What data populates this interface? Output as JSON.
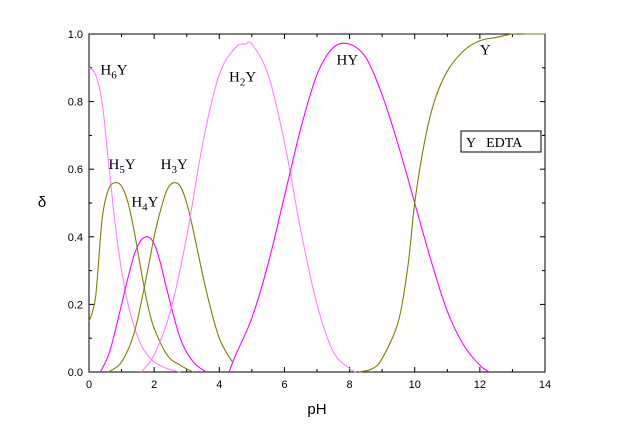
{
  "chart_data": {
    "type": "line",
    "xlabel": "pH",
    "ylabel": "δ",
    "xlim": [
      0,
      14
    ],
    "ylim": [
      0,
      1.0
    ],
    "x_ticks": [
      "0",
      "2",
      "4",
      "6",
      "8",
      "10",
      "12",
      "14"
    ],
    "y_ticks": [
      "0.0",
      "0.2",
      "0.4",
      "0.6",
      "0.8",
      "1.0"
    ],
    "grid": false,
    "legend_box": "Y EDTA",
    "colors": {
      "pink": "#ff80ff",
      "olive": "#7f7f00",
      "magenta": "#ff00ff"
    },
    "series": [
      {
        "name": "H6Y",
        "color": "#ff80ff",
        "x": [
          0,
          0.2,
          0.4,
          0.6,
          0.8,
          1.0,
          1.2,
          1.4,
          1.6,
          1.8,
          2.0,
          2.4,
          2.8
        ],
        "y": [
          0.9,
          0.88,
          0.8,
          0.62,
          0.44,
          0.3,
          0.2,
          0.13,
          0.08,
          0.05,
          0.03,
          0.01,
          0.0
        ]
      },
      {
        "name": "H5Y",
        "color": "#7f7f00",
        "x": [
          0,
          0.2,
          0.4,
          0.6,
          0.8,
          1.0,
          1.2,
          1.4,
          1.6,
          1.8,
          2.0,
          2.4,
          2.8,
          3.2
        ],
        "y": [
          0.15,
          0.22,
          0.45,
          0.54,
          0.56,
          0.55,
          0.5,
          0.41,
          0.3,
          0.2,
          0.13,
          0.05,
          0.02,
          0.0
        ]
      },
      {
        "name": "H4Y",
        "color": "#ff00ff",
        "x": [
          0.35,
          0.6,
          0.8,
          1.0,
          1.2,
          1.4,
          1.6,
          1.8,
          2.0,
          2.2,
          2.4,
          2.8,
          3.2,
          3.6
        ],
        "y": [
          0.0,
          0.05,
          0.12,
          0.2,
          0.28,
          0.35,
          0.39,
          0.4,
          0.38,
          0.32,
          0.24,
          0.1,
          0.03,
          0.0
        ]
      },
      {
        "name": "H3Y",
        "color": "#7f7f00",
        "x": [
          0.6,
          1.0,
          1.4,
          1.8,
          2.0,
          2.2,
          2.4,
          2.6,
          2.8,
          3.0,
          3.2,
          3.6,
          4.0,
          4.4
        ],
        "y": [
          0.0,
          0.03,
          0.12,
          0.3,
          0.4,
          0.48,
          0.54,
          0.56,
          0.55,
          0.5,
          0.42,
          0.24,
          0.1,
          0.03
        ]
      },
      {
        "name": "H2Y",
        "color": "#ff80ff",
        "x": [
          1.6,
          2.0,
          2.5,
          3.0,
          3.5,
          4.0,
          4.5,
          4.8,
          5.0,
          5.5,
          6.0,
          6.5,
          7.0,
          7.5,
          8.0,
          8.2
        ],
        "y": [
          0.0,
          0.05,
          0.18,
          0.4,
          0.68,
          0.88,
          0.96,
          0.97,
          0.97,
          0.88,
          0.68,
          0.42,
          0.2,
          0.06,
          0.01,
          0.0
        ]
      },
      {
        "name": "HY",
        "color": "#ff00ff",
        "x": [
          4.3,
          4.5,
          5.0,
          5.5,
          6.0,
          6.5,
          7.0,
          7.5,
          8.0,
          8.5,
          9.0,
          9.5,
          10.0,
          10.5,
          11.0,
          11.5,
          12.0,
          12.3
        ],
        "y": [
          0.0,
          0.05,
          0.16,
          0.32,
          0.52,
          0.72,
          0.88,
          0.96,
          0.97,
          0.93,
          0.82,
          0.67,
          0.5,
          0.33,
          0.18,
          0.08,
          0.02,
          0.0
        ]
      },
      {
        "name": "Y",
        "color": "#7f7f00",
        "x": [
          8.3,
          8.7,
          9.0,
          9.5,
          9.8,
          10.0,
          10.3,
          10.6,
          11.0,
          11.5,
          12.0,
          12.5,
          13.0,
          13.5,
          14.0
        ],
        "y": [
          0.0,
          0.01,
          0.04,
          0.15,
          0.32,
          0.5,
          0.68,
          0.8,
          0.89,
          0.95,
          0.98,
          0.99,
          1.0,
          1.0,
          1.0
        ]
      }
    ],
    "curve_labels": [
      {
        "base": "H",
        "sub": "6",
        "suffix": "Y",
        "x": 0.35,
        "y": 0.88
      },
      {
        "base": "H",
        "sub": "5",
        "suffix": "Y",
        "x": 0.6,
        "y": 0.6
      },
      {
        "base": "H",
        "sub": "4",
        "suffix": "Y",
        "x": 1.3,
        "y": 0.49
      },
      {
        "base": "H",
        "sub": "3",
        "suffix": "Y",
        "x": 2.2,
        "y": 0.6
      },
      {
        "base": "H",
        "sub": "2",
        "suffix": "Y",
        "x": 4.3,
        "y": 0.86
      },
      {
        "base": "HY",
        "sub": "",
        "suffix": "",
        "x": 7.6,
        "y": 0.91
      },
      {
        "base": "Y",
        "sub": "",
        "suffix": "",
        "x": 12.0,
        "y": 0.94
      }
    ]
  }
}
